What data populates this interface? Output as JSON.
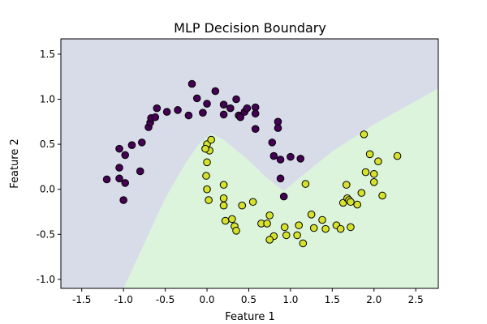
{
  "chart_data": {
    "type": "scatter",
    "title": "MLP Decision Boundary",
    "xlabel": "Feature 1",
    "ylabel": "Feature 2",
    "xlim": [
      -1.75,
      2.77
    ],
    "ylim": [
      -1.1,
      1.67
    ],
    "xticks": [
      "-1.5",
      "-1.0",
      "-0.5",
      "0.0",
      "0.5",
      "1.0",
      "1.5",
      "2.0",
      "2.5"
    ],
    "yticks": [
      "-1.0",
      "-0.5",
      "0.0",
      "0.5",
      "1.0",
      "1.5"
    ],
    "grid": false,
    "legend": "none",
    "colors": {
      "class_0": "#440154",
      "class_1": "#d6e22b",
      "region_0": "#d8dce8",
      "region_1": "#dcf4dc",
      "edge": "#000000"
    },
    "decision_boundary": [
      [
        -1.0,
        -1.1
      ],
      [
        -0.5,
        -0.1
      ],
      [
        -0.25,
        0.3
      ],
      [
        -0.1,
        0.5
      ],
      [
        0.05,
        0.62
      ],
      [
        0.2,
        0.55
      ],
      [
        0.5,
        0.32
      ],
      [
        0.7,
        0.14
      ],
      [
        0.92,
        -0.02
      ],
      [
        1.1,
        0.12
      ],
      [
        1.5,
        0.42
      ],
      [
        2.0,
        0.72
      ],
      [
        2.5,
        0.98
      ],
      [
        2.77,
        1.12
      ]
    ],
    "series": [
      {
        "class": 0,
        "points": [
          [
            -1.2,
            0.11
          ],
          [
            -1.05,
            0.12
          ],
          [
            -1.0,
            -0.12
          ],
          [
            -0.98,
            0.07
          ],
          [
            -0.8,
            0.2
          ],
          [
            -1.05,
            0.24
          ],
          [
            -1.05,
            0.45
          ],
          [
            -0.98,
            0.38
          ],
          [
            -0.9,
            0.49
          ],
          [
            -0.78,
            0.52
          ],
          [
            -0.7,
            0.69
          ],
          [
            -0.68,
            0.74
          ],
          [
            -0.67,
            0.79
          ],
          [
            -0.62,
            0.8
          ],
          [
            -0.6,
            0.9
          ],
          [
            -0.48,
            0.86
          ],
          [
            -0.35,
            0.88
          ],
          [
            -0.22,
            0.82
          ],
          [
            -0.18,
            1.17
          ],
          [
            -0.12,
            1.01
          ],
          [
            -0.05,
            0.85
          ],
          [
            0.0,
            0.95
          ],
          [
            0.1,
            1.09
          ],
          [
            0.2,
            0.94
          ],
          [
            0.2,
            0.83
          ],
          [
            0.28,
            0.9
          ],
          [
            0.35,
            1.0
          ],
          [
            0.38,
            0.82
          ],
          [
            0.4,
            0.8
          ],
          [
            0.45,
            0.86
          ],
          [
            0.48,
            0.9
          ],
          [
            0.58,
            0.91
          ],
          [
            0.58,
            0.84
          ],
          [
            0.58,
            0.67
          ],
          [
            0.78,
            0.52
          ],
          [
            0.8,
            0.37
          ],
          [
            0.85,
            0.75
          ],
          [
            0.85,
            0.68
          ],
          [
            0.88,
            0.33
          ],
          [
            0.88,
            0.12
          ],
          [
            1.0,
            0.36
          ],
          [
            1.12,
            0.34
          ]
        ]
      },
      {
        "class": 1,
        "points": [
          [
            0.0,
            0.5
          ],
          [
            0.03,
            0.43
          ],
          [
            0.05,
            0.55
          ],
          [
            -0.02,
            0.45
          ],
          [
            0.0,
            0.3
          ],
          [
            -0.01,
            0.15
          ],
          [
            0.0,
            0.0
          ],
          [
            0.02,
            -0.12
          ],
          [
            0.2,
            0.05
          ],
          [
            0.2,
            -0.1
          ],
          [
            0.2,
            -0.18
          ],
          [
            0.22,
            -0.35
          ],
          [
            0.3,
            -0.33
          ],
          [
            0.33,
            -0.41
          ],
          [
            0.35,
            -0.46
          ],
          [
            0.42,
            -0.18
          ],
          [
            0.55,
            -0.14
          ],
          [
            0.65,
            -0.38
          ],
          [
            0.72,
            -0.38
          ],
          [
            0.75,
            -0.29
          ],
          [
            0.8,
            -0.52
          ],
          [
            0.75,
            -0.56
          ],
          [
            0.93,
            -0.42
          ],
          [
            0.95,
            -0.51
          ],
          [
            1.08,
            -0.51
          ],
          [
            1.1,
            -0.4
          ],
          [
            1.15,
            -0.6
          ],
          [
            1.25,
            -0.28
          ],
          [
            1.28,
            -0.43
          ],
          [
            1.38,
            -0.34
          ],
          [
            1.42,
            -0.44
          ],
          [
            1.55,
            -0.4
          ],
          [
            1.6,
            -0.44
          ],
          [
            1.63,
            -0.15
          ],
          [
            1.67,
            0.05
          ],
          [
            1.68,
            -0.1
          ],
          [
            1.7,
            -0.12
          ],
          [
            1.72,
            -0.42
          ],
          [
            1.8,
            -0.17
          ],
          [
            1.85,
            -0.04
          ],
          [
            1.88,
            0.61
          ],
          [
            1.9,
            0.19
          ],
          [
            1.95,
            0.39
          ],
          [
            2.0,
            0.17
          ],
          [
            2.0,
            0.08
          ],
          [
            2.05,
            0.31
          ],
          [
            2.1,
            -0.07
          ],
          [
            2.28,
            0.37
          ],
          [
            1.72,
            -0.14
          ]
        ]
      },
      {
        "class": 0,
        "points": [
          [
            0.92,
            -0.08
          ]
        ]
      },
      {
        "class": 1,
        "points": [
          [
            1.18,
            0.06
          ]
        ]
      }
    ]
  }
}
